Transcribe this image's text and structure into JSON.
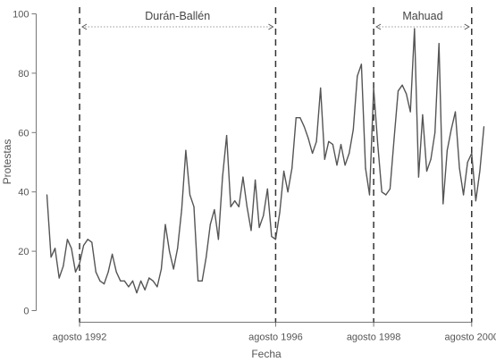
{
  "chart_data": {
    "type": "line",
    "xlabel": "Fecha",
    "ylabel": "Protestas",
    "ylim": [
      0,
      100
    ],
    "yticks": [
      0,
      20,
      40,
      60,
      80,
      100
    ],
    "grid": false,
    "line_color": "#555555",
    "x_ticks": [
      {
        "label": "agosto 1992",
        "month_index": 8
      },
      {
        "label": "agosto 1996",
        "month_index": 56
      },
      {
        "label": "agosto 1998",
        "month_index": 80
      },
      {
        "label": "agosto 2000",
        "month_index": 104
      }
    ],
    "vertical_lines": [
      8,
      56,
      80,
      104
    ],
    "periods": [
      {
        "label": "Durán-Ballén",
        "start": 8,
        "end": 56
      },
      {
        "label": "Mahuad",
        "start": 80,
        "end": 104
      }
    ],
    "series": [
      {
        "values": [
          39,
          18,
          21,
          11,
          15,
          24,
          21,
          13,
          16,
          22,
          24,
          23,
          13,
          10,
          9,
          13,
          19,
          13,
          10,
          10,
          8,
          10,
          6,
          10,
          7,
          11,
          10,
          8,
          14,
          29,
          20,
          14,
          21,
          34,
          54,
          39,
          35,
          10,
          10,
          18,
          29,
          34,
          24,
          45,
          59,
          35,
          37,
          35,
          45,
          35,
          27,
          44,
          28,
          32,
          41,
          25,
          24,
          33,
          47,
          40,
          48,
          65,
          65,
          62,
          58,
          53,
          57,
          75,
          51,
          57,
          56,
          49,
          56,
          49,
          53,
          61,
          79,
          83,
          48,
          39,
          75,
          56,
          40,
          39,
          41,
          58,
          74,
          76,
          73,
          67,
          95,
          45,
          66,
          47,
          51,
          60,
          90,
          36,
          54,
          61,
          67,
          48,
          39,
          50,
          53,
          37,
          47,
          62
        ]
      }
    ]
  }
}
